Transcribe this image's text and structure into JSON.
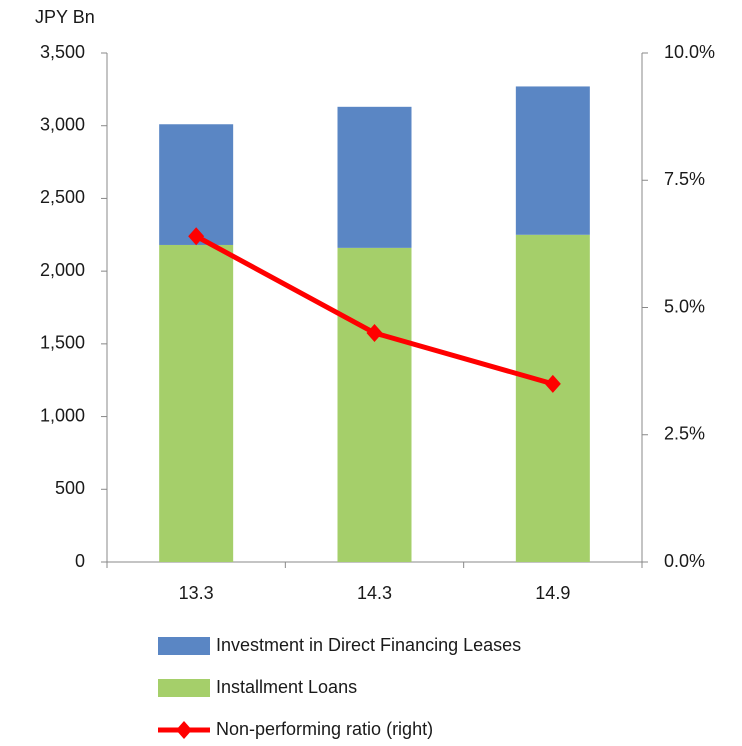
{
  "chart_data": {
    "type": "bar",
    "stacked": true,
    "y_axis_label": "JPY Bn",
    "categories": [
      "13.3",
      "14.3",
      "14.9"
    ],
    "series": [
      {
        "name": "Investment in Direct Financing Leases",
        "color": "#5a86c4",
        "values": [
          830,
          970,
          1020
        ]
      },
      {
        "name": "Installment Loans",
        "color": "#a5cf6a",
        "values": [
          2180,
          2160,
          2250
        ]
      },
      {
        "name": "Non-performing ratio (right)",
        "type": "line",
        "axis": "y2",
        "color": "#ff0000",
        "values": [
          6.4,
          4.5,
          3.5
        ]
      }
    ],
    "ylim": [
      0,
      3500
    ],
    "yticks": [
      0,
      500,
      {
        "value": 1000,
        "label": "1,000"
      },
      {
        "value": 1500,
        "label": "1,500"
      },
      {
        "value": 2000,
        "label": "2,000"
      },
      {
        "value": 2500,
        "label": "2,500"
      },
      {
        "value": 3000,
        "label": "3,000"
      },
      {
        "value": 3500,
        "label": "3,500"
      }
    ],
    "y2lim": [
      0,
      10
    ],
    "y2ticks": [
      {
        "value": 0,
        "label": "0.0%"
      },
      {
        "value": 2.5,
        "label": "2.5%"
      },
      {
        "value": 5,
        "label": "5.0%"
      },
      {
        "value": 7.5,
        "label": "7.5%"
      },
      {
        "value": 10,
        "label": "10.0%"
      }
    ],
    "legend": "bottom"
  }
}
